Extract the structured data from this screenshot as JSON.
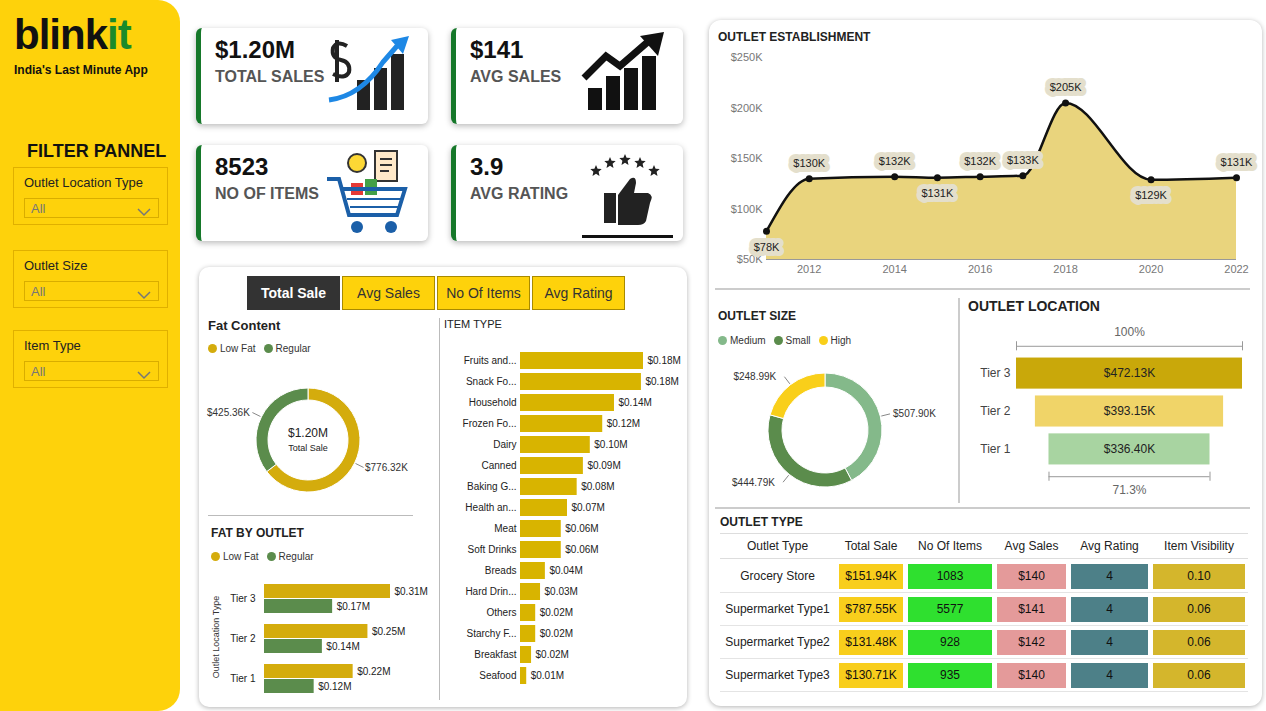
{
  "header": {
    "logo_parts": [
      "blink",
      "it"
    ],
    "tagline": "India's Last Minute App"
  },
  "filter_panel": {
    "title": "FILTER PANNEL",
    "filters": [
      {
        "label": "Outlet Location Type",
        "value": "All"
      },
      {
        "label": "Outlet Size",
        "value": "All"
      },
      {
        "label": "Item Type",
        "value": "All"
      }
    ]
  },
  "kpis": [
    {
      "value": "$1.20M",
      "label": "TOTAL SALES"
    },
    {
      "value": "$141",
      "label": "AVG SALES"
    },
    {
      "value": "8523",
      "label": "NO OF ITEMS"
    },
    {
      "value": "3.9",
      "label": "AVG RATING"
    }
  ],
  "tabs": {
    "items": [
      "Total Sale",
      "Avg Sales",
      "No Of Items",
      "Avg Rating"
    ],
    "active": "Total Sale"
  },
  "chart_data": [
    {
      "type": "donut",
      "title": "Fat Content",
      "categories": [
        "Low Fat",
        "Regular"
      ],
      "values": [
        776.32,
        425.36
      ],
      "value_labels": [
        "$776.32K",
        "$425.36K"
      ],
      "colors": [
        "#d4ac0d",
        "#5b8c4c"
      ],
      "annotations": [
        "$1.20M",
        "Total Sale"
      ],
      "legend": "top",
      "data_labels": true
    },
    {
      "type": "bar",
      "title": "FAT BY OUTLET",
      "orientation": "horizontal",
      "categories": [
        "Tier 3",
        "Tier 2",
        "Tier 1"
      ],
      "y_label": "Outlet Location Type",
      "series": [
        {
          "name": "Low Fat",
          "color": "#d4ac0d",
          "values": [
            0.307,
            0.252,
            0.216
          ],
          "value_labels": [
            "$0.31M",
            "$0.25M",
            "$0.22M"
          ]
        },
        {
          "name": "Regular",
          "color": "#5b8c4c",
          "values": [
            0.166,
            0.141,
            0.121
          ],
          "value_labels": [
            "$0.17M",
            "$0.14M",
            "$0.12M"
          ]
        }
      ],
      "legend": "top",
      "data_labels": true,
      "tick_labels": "y"
    },
    {
      "type": "bar",
      "title": "ITEM TYPE",
      "orientation": "horizontal",
      "categories": [
        "Fruits and...",
        "Snack Fo...",
        "Household",
        "Frozen Fo...",
        "Dairy",
        "Canned",
        "Baking G...",
        "Health an...",
        "Meat",
        "Soft Drinks",
        "Breads",
        "Hard Drin...",
        "Others",
        "Starchy F...",
        "Breakfast",
        "Seafood"
      ],
      "values": [
        0.178,
        0.175,
        0.136,
        0.119,
        0.101,
        0.091,
        0.082,
        0.068,
        0.059,
        0.059,
        0.036,
        0.029,
        0.022,
        0.022,
        0.016,
        0.009
      ],
      "value_labels": [
        "$0.18M",
        "$0.18M",
        "$0.14M",
        "$0.12M",
        "$0.10M",
        "$0.09M",
        "$0.08M",
        "$0.07M",
        "$0.06M",
        "$0.06M",
        "$0.04M",
        "$0.03M",
        "$0.02M",
        "$0.02M",
        "$0.02M",
        "$0.01M"
      ],
      "color": "#d8b400",
      "data_labels": true,
      "tick_labels": "y"
    },
    {
      "type": "area",
      "title": "OUTLET ESTABLISHMENT",
      "x": [
        2011,
        2012,
        2014,
        2015,
        2016,
        2017,
        2018,
        2020,
        2022
      ],
      "values": [
        78000,
        130000,
        132000,
        131000,
        132000,
        133000,
        205000,
        129000,
        131000
      ],
      "value_labels": [
        "$78K",
        "$130K",
        "$132K",
        "$131K",
        "$132K",
        "$133K",
        "$205K",
        "$129K",
        "$131K"
      ],
      "xlim": [
        2011,
        2022
      ],
      "xticks": [
        2012,
        2014,
        2016,
        2018,
        2020,
        2022
      ],
      "ylim": [
        50000,
        250000
      ],
      "yticks": [
        {
          "value": 50000,
          "label": "$50K"
        },
        {
          "value": 100000,
          "label": "$100K"
        },
        {
          "value": 150000,
          "label": "$150K"
        },
        {
          "value": 200000,
          "label": "$200K"
        },
        {
          "value": 250000,
          "label": "$250K"
        }
      ],
      "color": "#e9d47d",
      "marker": "circle",
      "grid": false,
      "data_labels": true
    },
    {
      "type": "donut",
      "title": "OUTLET SIZE",
      "categories": [
        "Medium",
        "Small",
        "High"
      ],
      "values": [
        507.9,
        444.79,
        248.99
      ],
      "value_labels": [
        "$507.90K",
        "$444.79K",
        "$248.99K"
      ],
      "colors": [
        "#84b98a",
        "#5b8c4c",
        "#f9cf1a"
      ],
      "legend": "top",
      "data_labels": true
    },
    {
      "type": "funnel",
      "title": "OUTLET LOCATION",
      "categories": [
        "Tier 3",
        "Tier 2",
        "Tier 1"
      ],
      "values": [
        472.13,
        393.15,
        336.4
      ],
      "value_labels": [
        "$472.13K",
        "$393.15K",
        "$336.40K"
      ],
      "colors": [
        "#c9a80a",
        "#f0d468",
        "#a8d4a1"
      ],
      "annotations": [
        "100%",
        "71.3%"
      ],
      "data_labels": true,
      "tick_labels": "y"
    }
  ],
  "table": {
    "title": "OUTLET TYPE",
    "columns": [
      "Outlet Type",
      "Total Sale",
      "No Of Items",
      "Avg Sales",
      "Avg Rating",
      "Item Visibility"
    ],
    "rows": [
      [
        "Grocery Store",
        "$151.94K",
        "1083",
        "$140",
        "4",
        "0.10"
      ],
      [
        "Supermarket Type1",
        "$787.55K",
        "5577",
        "$141",
        "4",
        "0.06"
      ],
      [
        "Supermarket Type2",
        "$131.48K",
        "928",
        "$142",
        "4",
        "0.06"
      ],
      [
        "Supermarket Type3",
        "$130.71K",
        "935",
        "$140",
        "4",
        "0.06"
      ]
    ]
  }
}
